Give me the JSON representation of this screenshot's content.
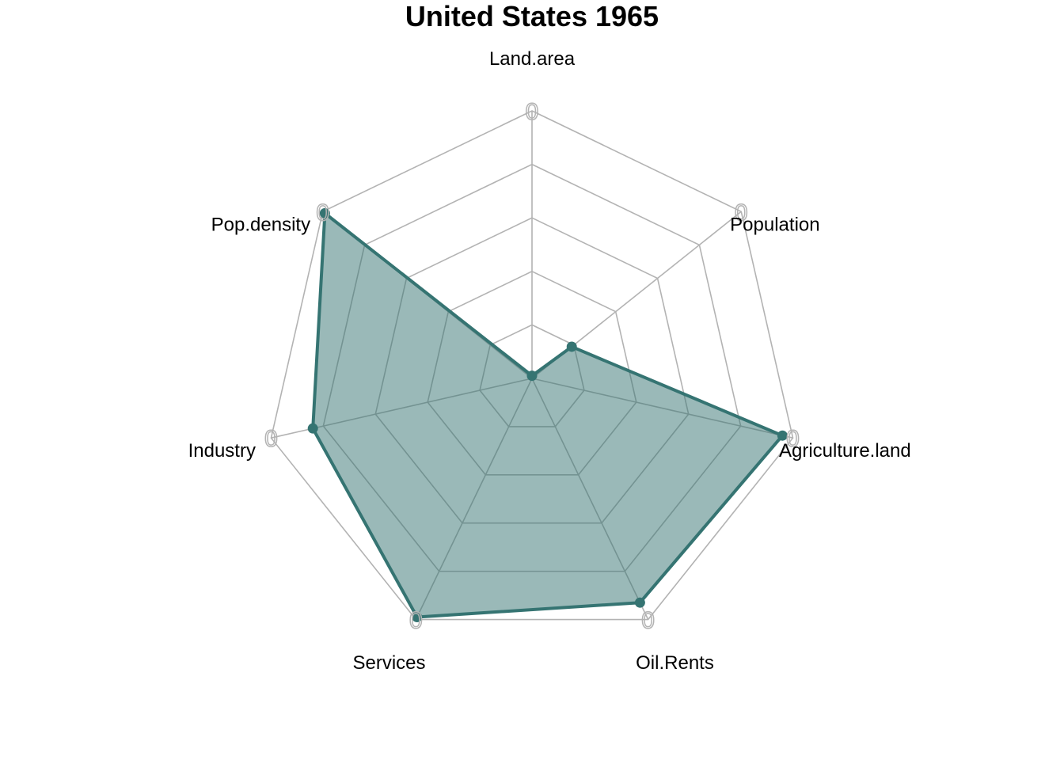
{
  "chart_data": {
    "type": "radar",
    "title": "United States 1965",
    "axes": [
      "Land.area",
      "Population",
      "Agriculture.land",
      "Oil.Rents",
      "Services",
      "Industry",
      "Pop.density"
    ],
    "max_tick_label": "0",
    "range": [
      0,
      1
    ],
    "grid_levels": 5,
    "series": [
      {
        "values": [
          0.01,
          0.19,
          0.96,
          0.93,
          0.99,
          0.84,
          0.99
        ]
      }
    ],
    "colors": {
      "line": "#357472",
      "fill": "#357472",
      "grid": "#b3b3b3"
    }
  }
}
